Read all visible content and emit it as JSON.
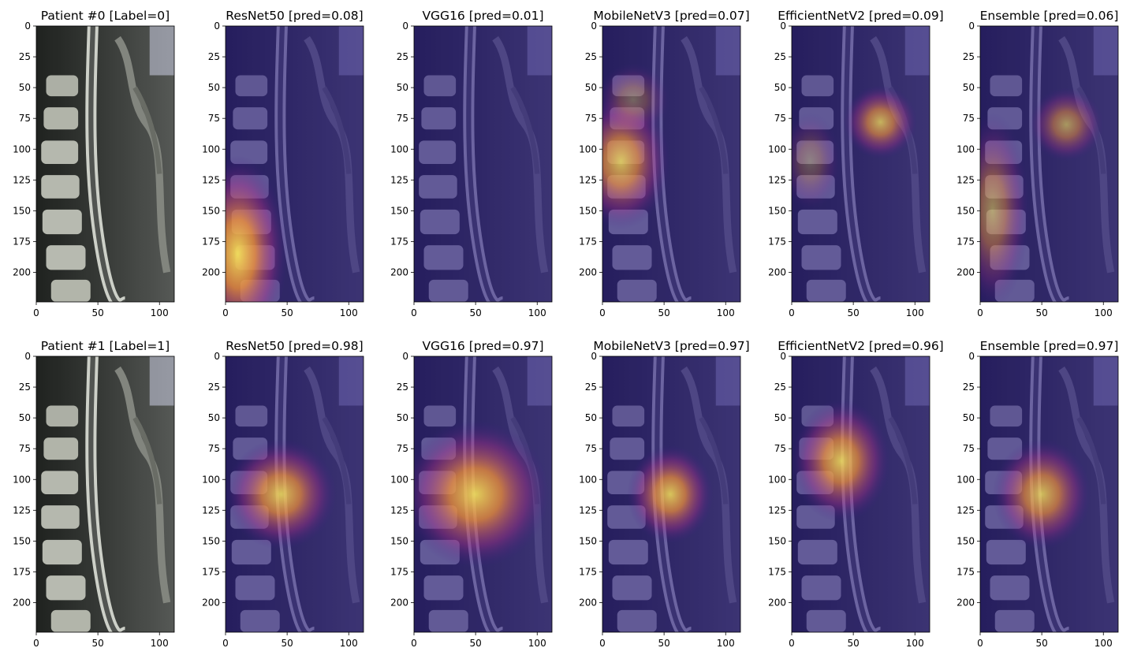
{
  "figure": {
    "xticks": [
      "0",
      "50",
      "100"
    ],
    "yticks": [
      "0",
      "25",
      "50",
      "75",
      "100",
      "125",
      "150",
      "175",
      "200"
    ],
    "rows": [
      {
        "panels": [
          {
            "title": "Patient #0 [Label=0]",
            "kind": "original",
            "heat": []
          },
          {
            "title": "ResNet50 [pred=0.08]",
            "kind": "cam",
            "heat": [
              {
                "x": 10,
                "y": 185,
                "rx": 40,
                "ry": 80,
                "s": 0.95
              }
            ]
          },
          {
            "title": "VGG16 [pred=0.01]",
            "kind": "cam",
            "heat": []
          },
          {
            "title": "MobileNetV3 [pred=0.07]",
            "kind": "cam",
            "heat": [
              {
                "x": 15,
                "y": 110,
                "rx": 40,
                "ry": 55,
                "s": 0.8
              },
              {
                "x": 25,
                "y": 60,
                "rx": 30,
                "ry": 30,
                "s": 0.35
              }
            ]
          },
          {
            "title": "EfficientNetV2 [pred=0.09]",
            "kind": "cam",
            "heat": [
              {
                "x": 72,
                "y": 78,
                "rx": 30,
                "ry": 30,
                "s": 0.75
              },
              {
                "x": 15,
                "y": 110,
                "rx": 25,
                "ry": 40,
                "s": 0.3
              }
            ]
          },
          {
            "title": "Ensemble [pred=0.06]",
            "kind": "cam",
            "heat": [
              {
                "x": 70,
                "y": 80,
                "rx": 30,
                "ry": 30,
                "s": 0.6
              },
              {
                "x": 10,
                "y": 150,
                "rx": 30,
                "ry": 80,
                "s": 0.55
              }
            ]
          }
        ]
      },
      {
        "panels": [
          {
            "title": "Patient #1 [Label=1]",
            "kind": "original",
            "heat": []
          },
          {
            "title": "ResNet50 [pred=0.98]",
            "kind": "cam",
            "heat": [
              {
                "x": 45,
                "y": 112,
                "rx": 45,
                "ry": 45,
                "s": 0.85
              }
            ]
          },
          {
            "title": "VGG16 [pred=0.97]",
            "kind": "cam",
            "heat": [
              {
                "x": 50,
                "y": 112,
                "rx": 60,
                "ry": 60,
                "s": 0.9
              }
            ]
          },
          {
            "title": "MobileNetV3 [pred=0.97]",
            "kind": "cam",
            "heat": [
              {
                "x": 55,
                "y": 112,
                "rx": 35,
                "ry": 40,
                "s": 0.85
              }
            ]
          },
          {
            "title": "EfficientNetV2 [pred=0.96]",
            "kind": "cam",
            "heat": [
              {
                "x": 40,
                "y": 85,
                "rx": 40,
                "ry": 50,
                "s": 0.85
              }
            ]
          },
          {
            "title": "Ensemble [pred=0.97]",
            "kind": "cam",
            "heat": [
              {
                "x": 50,
                "y": 112,
                "rx": 40,
                "ry": 45,
                "s": 0.8
              }
            ]
          }
        ]
      }
    ]
  }
}
